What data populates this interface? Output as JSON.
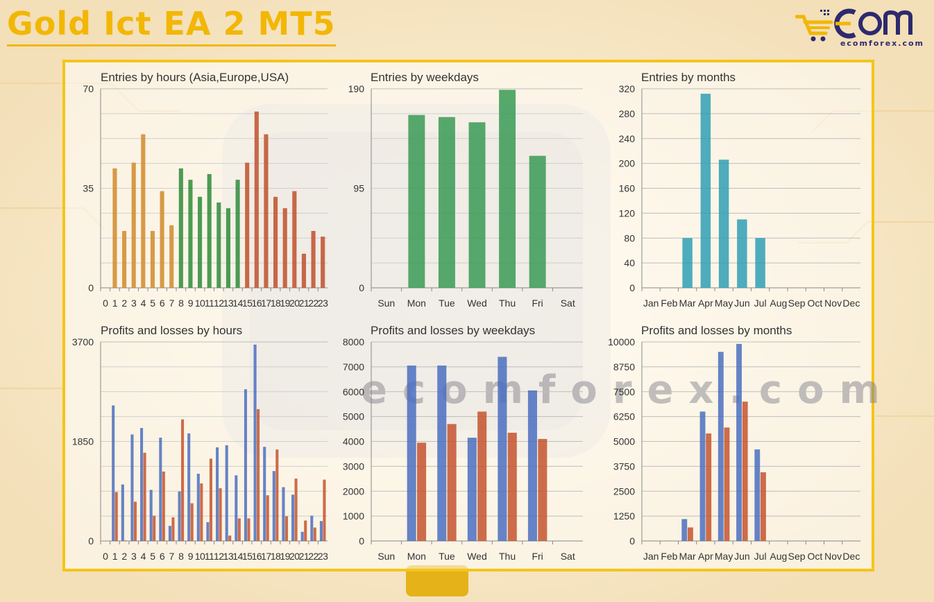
{
  "page": {
    "title": "Gold Ict EA 2 MT5",
    "logo_text": "ecomforex.com",
    "watermark": "ecomforex.com"
  },
  "colors": {
    "asia": "#d08a2c",
    "europe": "#2e8b3a",
    "usa": "#c0502a",
    "weekdays_green": "#3a9a55",
    "months_teal": "#2f9fb5",
    "profit_blue": "#4a6fbf",
    "loss_red": "#c4532e",
    "frame": "#f5c518",
    "title_gold": "#f2b705",
    "logo_navy": "#2d2a6e"
  },
  "chart_data": [
    {
      "type": "bar",
      "title": "Entries by hours (Asia,Europe,USA)",
      "categories": [
        "0",
        "1",
        "2",
        "3",
        "4",
        "5",
        "6",
        "7",
        "8",
        "9",
        "10",
        "11",
        "12",
        "13",
        "14",
        "15",
        "16",
        "17",
        "18",
        "19",
        "20",
        "21",
        "22",
        "23"
      ],
      "values": [
        0,
        42,
        20,
        44,
        54,
        20,
        34,
        22,
        42,
        38,
        32,
        40,
        30,
        28,
        38,
        44,
        62,
        54,
        32,
        28,
        34,
        12,
        20,
        18
      ],
      "groups": [
        "asia",
        "asia",
        "asia",
        "asia",
        "asia",
        "asia",
        "asia",
        "asia",
        "europe",
        "europe",
        "europe",
        "europe",
        "europe",
        "europe",
        "europe",
        "usa",
        "usa",
        "usa",
        "usa",
        "usa",
        "usa",
        "usa",
        "usa",
        "usa"
      ],
      "yticks": [
        0,
        35,
        70
      ],
      "ylim": [
        0,
        70
      ]
    },
    {
      "type": "bar",
      "title": "Entries by weekdays",
      "categories": [
        "Sun",
        "Mon",
        "Tue",
        "Wed",
        "Thu",
        "Fri",
        "Sat"
      ],
      "values": [
        0,
        165,
        163,
        158,
        189,
        126,
        0
      ],
      "yticks": [
        0,
        95,
        190
      ],
      "ylim": [
        0,
        190
      ]
    },
    {
      "type": "bar",
      "title": "Entries by months",
      "categories": [
        "Jan",
        "Feb",
        "Mar",
        "Apr",
        "May",
        "Jun",
        "Jul",
        "Aug",
        "Sep",
        "Oct",
        "Nov",
        "Dec"
      ],
      "values": [
        0,
        0,
        80,
        312,
        206,
        110,
        80,
        0,
        0,
        0,
        0,
        0
      ],
      "yticks": [
        0,
        40,
        80,
        120,
        160,
        200,
        240,
        280,
        320
      ],
      "ylim": [
        0,
        320
      ]
    },
    {
      "type": "bar",
      "title": "Profits and losses by hours",
      "categories": [
        "0",
        "1",
        "2",
        "3",
        "4",
        "5",
        "6",
        "7",
        "8",
        "9",
        "10",
        "11",
        "12",
        "13",
        "14",
        "15",
        "16",
        "17",
        "18",
        "19",
        "20",
        "21",
        "22",
        "23"
      ],
      "series": [
        {
          "values": [
            0,
            2520,
            1050,
            1980,
            2100,
            950,
            1920,
            280,
            920,
            2000,
            1250,
            350,
            1740,
            1780,
            1220,
            2820,
            3650,
            1750,
            1300,
            1000,
            860,
            170,
            470,
            370
          ]
        },
        {
          "values": [
            0,
            910,
            10,
            730,
            1640,
            470,
            1290,
            440,
            2260,
            700,
            1070,
            1530,
            980,
            100,
            420,
            420,
            2450,
            850,
            1700,
            460,
            1160,
            380,
            250,
            1140
          ]
        }
      ],
      "yticks": [
        0,
        1850,
        3700
      ],
      "ylim": [
        0,
        3700
      ]
    },
    {
      "type": "bar",
      "title": "Profits and losses by weekdays",
      "categories": [
        "Sun",
        "Mon",
        "Tue",
        "Wed",
        "Thu",
        "Fri",
        "Sat"
      ],
      "series": [
        {
          "values": [
            0,
            7050,
            7050,
            4150,
            7400,
            6050,
            0
          ]
        },
        {
          "values": [
            0,
            3950,
            4700,
            5200,
            4350,
            4100,
            0
          ]
        }
      ],
      "yticks": [
        0,
        1000,
        2000,
        3000,
        4000,
        5000,
        6000,
        7000,
        8000
      ],
      "ylim": [
        0,
        8000
      ]
    },
    {
      "type": "bar",
      "title": "Profits and losses by months",
      "categories": [
        "Jan",
        "Feb",
        "Mar",
        "Apr",
        "May",
        "Jun",
        "Jul",
        "Aug",
        "Sep",
        "Oct",
        "Nov",
        "Dec"
      ],
      "series": [
        {
          "values": [
            0,
            0,
            1100,
            6500,
            9500,
            9900,
            4600,
            0,
            0,
            0,
            0,
            0
          ]
        },
        {
          "values": [
            0,
            0,
            680,
            5400,
            5700,
            7000,
            3450,
            0,
            0,
            0,
            0,
            0
          ]
        }
      ],
      "yticks": [
        0,
        1250,
        2500,
        3750,
        5000,
        6250,
        7500,
        8750,
        10000
      ],
      "ylim": [
        0,
        10000
      ]
    }
  ]
}
